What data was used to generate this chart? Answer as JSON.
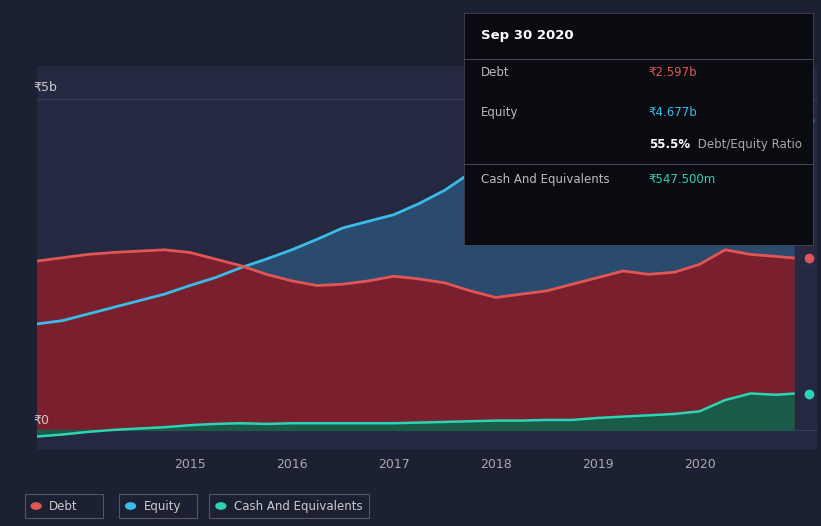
{
  "bg_color": "#1c2033",
  "chart_bg": "#242840",
  "grid_color": "#3a3f58",
  "tooltip_bg": "#0a0b10",
  "tooltip_title": "Sep 30 2020",
  "tooltip_debt_label": "Debt",
  "tooltip_debt_value": "₹2.597b",
  "tooltip_equity_label": "Equity",
  "tooltip_equity_value": "₹4.677b",
  "tooltip_ratio_bold": "55.5%",
  "tooltip_ratio_text": " Debt/Equity Ratio",
  "tooltip_cash_label": "Cash And Equivalents",
  "tooltip_cash_value": "₹547.500m",
  "debt_color": "#e05555",
  "equity_color": "#3abbe8",
  "cash_color": "#2dd4b4",
  "debt_fill": "#7a1f2e",
  "equity_fill": "#2a4a6e",
  "cash_fill": "#1a5a48",
  "y5b_label": "₹5b",
  "y0_label": "₹0",
  "xlim_start": 2013.5,
  "xlim_end": 2021.15,
  "ylim_min": -0.3,
  "ylim_max": 5.5,
  "years_ticks": [
    2015,
    2016,
    2017,
    2018,
    2019,
    2020
  ],
  "debt_x": [
    2013.5,
    2013.75,
    2014.0,
    2014.25,
    2014.5,
    2014.75,
    2015.0,
    2015.25,
    2015.5,
    2015.75,
    2016.0,
    2016.25,
    2016.5,
    2016.75,
    2017.0,
    2017.25,
    2017.5,
    2017.75,
    2018.0,
    2018.25,
    2018.5,
    2018.75,
    2019.0,
    2019.25,
    2019.5,
    2019.75,
    2020.0,
    2020.25,
    2020.5,
    2020.75,
    2020.92
  ],
  "debt_y": [
    2.55,
    2.6,
    2.65,
    2.68,
    2.7,
    2.72,
    2.68,
    2.58,
    2.48,
    2.35,
    2.25,
    2.18,
    2.2,
    2.25,
    2.32,
    2.28,
    2.22,
    2.1,
    2.0,
    2.05,
    2.1,
    2.2,
    2.3,
    2.4,
    2.35,
    2.38,
    2.5,
    2.72,
    2.65,
    2.62,
    2.597
  ],
  "equity_x": [
    2013.5,
    2013.75,
    2014.0,
    2014.25,
    2014.5,
    2014.75,
    2015.0,
    2015.25,
    2015.5,
    2015.75,
    2016.0,
    2016.25,
    2016.5,
    2016.75,
    2017.0,
    2017.25,
    2017.5,
    2017.75,
    2018.0,
    2018.25,
    2018.5,
    2018.75,
    2019.0,
    2019.25,
    2019.5,
    2019.75,
    2020.0,
    2020.25,
    2020.5,
    2020.75,
    2020.92
  ],
  "equity_y": [
    1.6,
    1.65,
    1.75,
    1.85,
    1.95,
    2.05,
    2.18,
    2.3,
    2.45,
    2.58,
    2.72,
    2.88,
    3.05,
    3.15,
    3.25,
    3.42,
    3.62,
    3.88,
    4.12,
    4.32,
    4.52,
    4.67,
    4.78,
    4.76,
    4.72,
    4.7,
    4.67,
    4.68,
    4.68,
    4.68,
    4.677
  ],
  "cash_x": [
    2013.5,
    2013.75,
    2014.0,
    2014.25,
    2014.5,
    2014.75,
    2015.0,
    2015.25,
    2015.5,
    2015.75,
    2016.0,
    2016.25,
    2016.5,
    2016.75,
    2017.0,
    2017.25,
    2017.5,
    2017.75,
    2018.0,
    2018.25,
    2018.5,
    2018.75,
    2019.0,
    2019.25,
    2019.5,
    2019.75,
    2020.0,
    2020.25,
    2020.5,
    2020.75,
    2020.92
  ],
  "cash_y": [
    -0.1,
    -0.07,
    -0.03,
    0.0,
    0.02,
    0.04,
    0.07,
    0.09,
    0.1,
    0.09,
    0.1,
    0.1,
    0.1,
    0.1,
    0.1,
    0.11,
    0.12,
    0.13,
    0.14,
    0.14,
    0.15,
    0.15,
    0.18,
    0.2,
    0.22,
    0.24,
    0.28,
    0.45,
    0.55,
    0.53,
    0.5475
  ],
  "legend_items": [
    "Debt",
    "Equity",
    "Cash And Equivalents"
  ],
  "legend_colors": [
    "#e05555",
    "#3abbe8",
    "#2dd4b4"
  ],
  "legend_border": "#555566"
}
